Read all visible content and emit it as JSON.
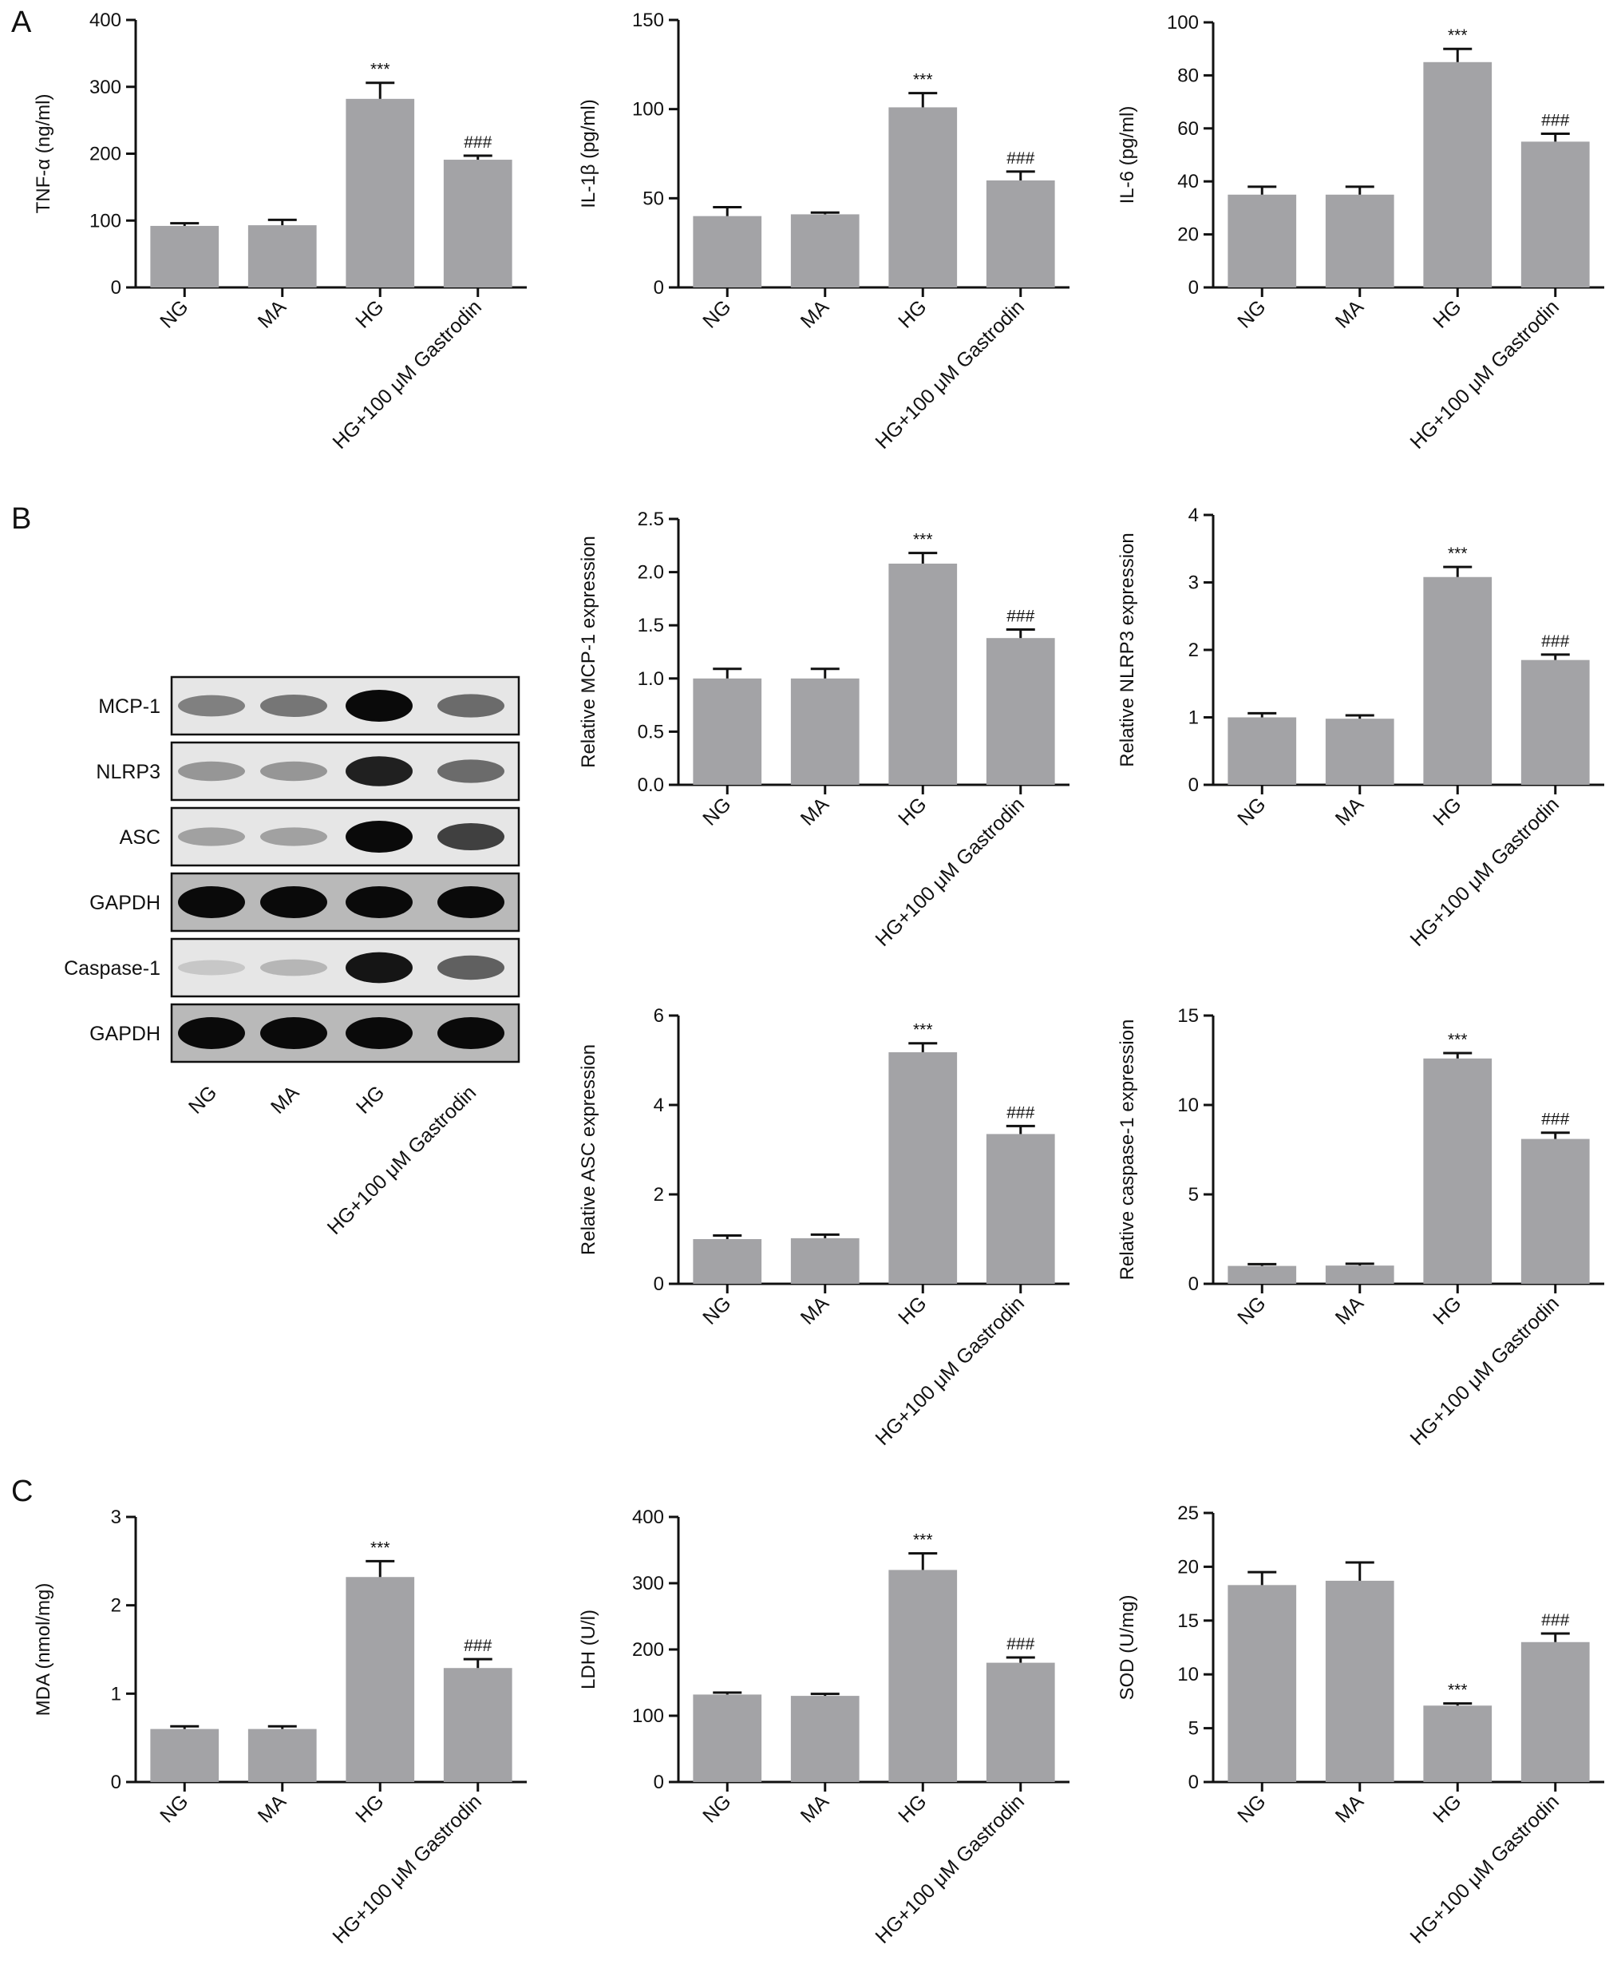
{
  "panel_labels": {
    "A": "A",
    "B": "B",
    "C": "C"
  },
  "colors": {
    "bar": "#a3a3a6",
    "axis": "#111111",
    "blot_bg": "#ececec",
    "band": "#0a0a0a"
  },
  "blot": {
    "rows": [
      "MCP-1",
      "NLRP3",
      "ASC",
      "GAPDH",
      "Caspase-1",
      "GAPDH"
    ],
    "lanes": [
      "NG",
      "MA",
      "HG",
      "HG+100 μM Gastrodin"
    ],
    "intensity": [
      [
        0.45,
        0.5,
        1.0,
        0.55
      ],
      [
        0.35,
        0.35,
        0.9,
        0.55
      ],
      [
        0.3,
        0.3,
        1.0,
        0.75
      ],
      [
        1.0,
        1.0,
        1.0,
        1.0
      ],
      [
        0.12,
        0.2,
        0.95,
        0.6
      ],
      [
        1.0,
        1.0,
        1.0,
        1.0
      ]
    ],
    "background": [
      0.1,
      0.1,
      0.1,
      0.85,
      0.1,
      0.85
    ]
  },
  "chart_data": [
    {
      "id": "tnf",
      "type": "bar",
      "panel": "A",
      "ylabel": "TNF-α (ng/ml)",
      "categories": [
        "NG",
        "MA",
        "HG",
        "HG+100 μM Gastrodin"
      ],
      "values": [
        92,
        93,
        282,
        191
      ],
      "errors": [
        4,
        8,
        24,
        6
      ],
      "ylim": [
        0,
        400
      ],
      "yticks": [
        "0",
        "100",
        "200",
        "300",
        "400"
      ],
      "significance": [
        "",
        "",
        "***",
        "###"
      ]
    },
    {
      "id": "il1b",
      "type": "bar",
      "panel": "A",
      "ylabel": "IL-1β (pg/ml)",
      "categories": [
        "NG",
        "MA",
        "HG",
        "HG+100 μM Gastrodin"
      ],
      "values": [
        40,
        41,
        101,
        60
      ],
      "errors": [
        5,
        1,
        8,
        5
      ],
      "ylim": [
        0,
        150
      ],
      "yticks": [
        "0",
        "50",
        "100",
        "150"
      ],
      "significance": [
        "",
        "",
        "***",
        "###"
      ]
    },
    {
      "id": "il6",
      "type": "bar",
      "panel": "A",
      "ylabel": "IL-6 (pg/ml)",
      "categories": [
        "NG",
        "MA",
        "HG",
        "HG+100 μM Gastrodin"
      ],
      "values": [
        35,
        35,
        85,
        55
      ],
      "errors": [
        3,
        3,
        5,
        3
      ],
      "ylim": [
        0,
        100
      ],
      "yticks": [
        "0",
        "20",
        "40",
        "60",
        "80",
        "100"
      ],
      "significance": [
        "",
        "",
        "***",
        "###"
      ]
    },
    {
      "id": "mcp1",
      "type": "bar",
      "panel": "B",
      "ylabel": "Relative MCP-1 expression",
      "categories": [
        "NG",
        "MA",
        "HG",
        "HG+100 μM Gastrodin"
      ],
      "values": [
        1.0,
        1.0,
        2.08,
        1.38
      ],
      "errors": [
        0.09,
        0.09,
        0.1,
        0.08
      ],
      "ylim": [
        0,
        2.5
      ],
      "yticks": [
        "0.0",
        "0.5",
        "1.0",
        "1.5",
        "2.0",
        "2.5"
      ],
      "significance": [
        "",
        "",
        "***",
        "###"
      ]
    },
    {
      "id": "nlrp3",
      "type": "bar",
      "panel": "B",
      "ylabel": "Relative NLRP3 expression",
      "categories": [
        "NG",
        "MA",
        "HG",
        "HG+100 μM Gastrodin"
      ],
      "values": [
        1.0,
        0.98,
        3.08,
        1.85
      ],
      "errors": [
        0.06,
        0.05,
        0.15,
        0.08
      ],
      "ylim": [
        0,
        4
      ],
      "yticks": [
        "0",
        "1",
        "2",
        "3",
        "4"
      ],
      "significance": [
        "",
        "",
        "***",
        "###"
      ]
    },
    {
      "id": "asc",
      "type": "bar",
      "panel": "B",
      "ylabel": "Relative ASC expression",
      "categories": [
        "NG",
        "MA",
        "HG",
        "HG+100 μM Gastrodin"
      ],
      "values": [
        1.0,
        1.02,
        5.18,
        3.35
      ],
      "errors": [
        0.08,
        0.08,
        0.2,
        0.18
      ],
      "ylim": [
        0,
        6
      ],
      "yticks": [
        "0",
        "2",
        "4",
        "6"
      ],
      "significance": [
        "",
        "",
        "***",
        "###"
      ]
    },
    {
      "id": "casp1",
      "type": "bar",
      "panel": "B",
      "ylabel": "Relative caspase-1 expression",
      "categories": [
        "NG",
        "MA",
        "HG",
        "HG+100 μM Gastrodin"
      ],
      "values": [
        1.0,
        1.02,
        12.6,
        8.1
      ],
      "errors": [
        0.1,
        0.1,
        0.3,
        0.35
      ],
      "ylim": [
        0,
        15
      ],
      "yticks": [
        "0",
        "5",
        "10",
        "15"
      ],
      "significance": [
        "",
        "",
        "***",
        "###"
      ]
    },
    {
      "id": "mda",
      "type": "bar",
      "panel": "C",
      "ylabel": "MDA (nmol/mg)",
      "categories": [
        "NG",
        "MA",
        "HG",
        "HG+100 μM Gastrodin"
      ],
      "values": [
        0.6,
        0.6,
        2.32,
        1.29
      ],
      "errors": [
        0.03,
        0.03,
        0.18,
        0.1
      ],
      "ylim": [
        0,
        3
      ],
      "yticks": [
        "0",
        "1",
        "2",
        "3"
      ],
      "significance": [
        "",
        "",
        "***",
        "###"
      ]
    },
    {
      "id": "ldh",
      "type": "bar",
      "panel": "C",
      "ylabel": "LDH (U/l)",
      "categories": [
        "NG",
        "MA",
        "HG",
        "HG+100 μM Gastrodin"
      ],
      "values": [
        132,
        130,
        320,
        180
      ],
      "errors": [
        3,
        3,
        25,
        8
      ],
      "ylim": [
        0,
        400
      ],
      "yticks": [
        "0",
        "100",
        "200",
        "300",
        "400"
      ],
      "significance": [
        "",
        "",
        "***",
        "###"
      ]
    },
    {
      "id": "sod",
      "type": "bar",
      "panel": "C",
      "ylabel": "SOD (U/mg)",
      "categories": [
        "NG",
        "MA",
        "HG",
        "HG+100 μM Gastrodin"
      ],
      "values": [
        18.3,
        18.7,
        7.1,
        13.0
      ],
      "errors": [
        1.2,
        1.7,
        0.2,
        0.8
      ],
      "ylim": [
        0,
        25
      ],
      "yticks": [
        "0",
        "5",
        "10",
        "15",
        "20",
        "25"
      ],
      "significance": [
        "",
        "",
        "***",
        "###"
      ]
    }
  ]
}
